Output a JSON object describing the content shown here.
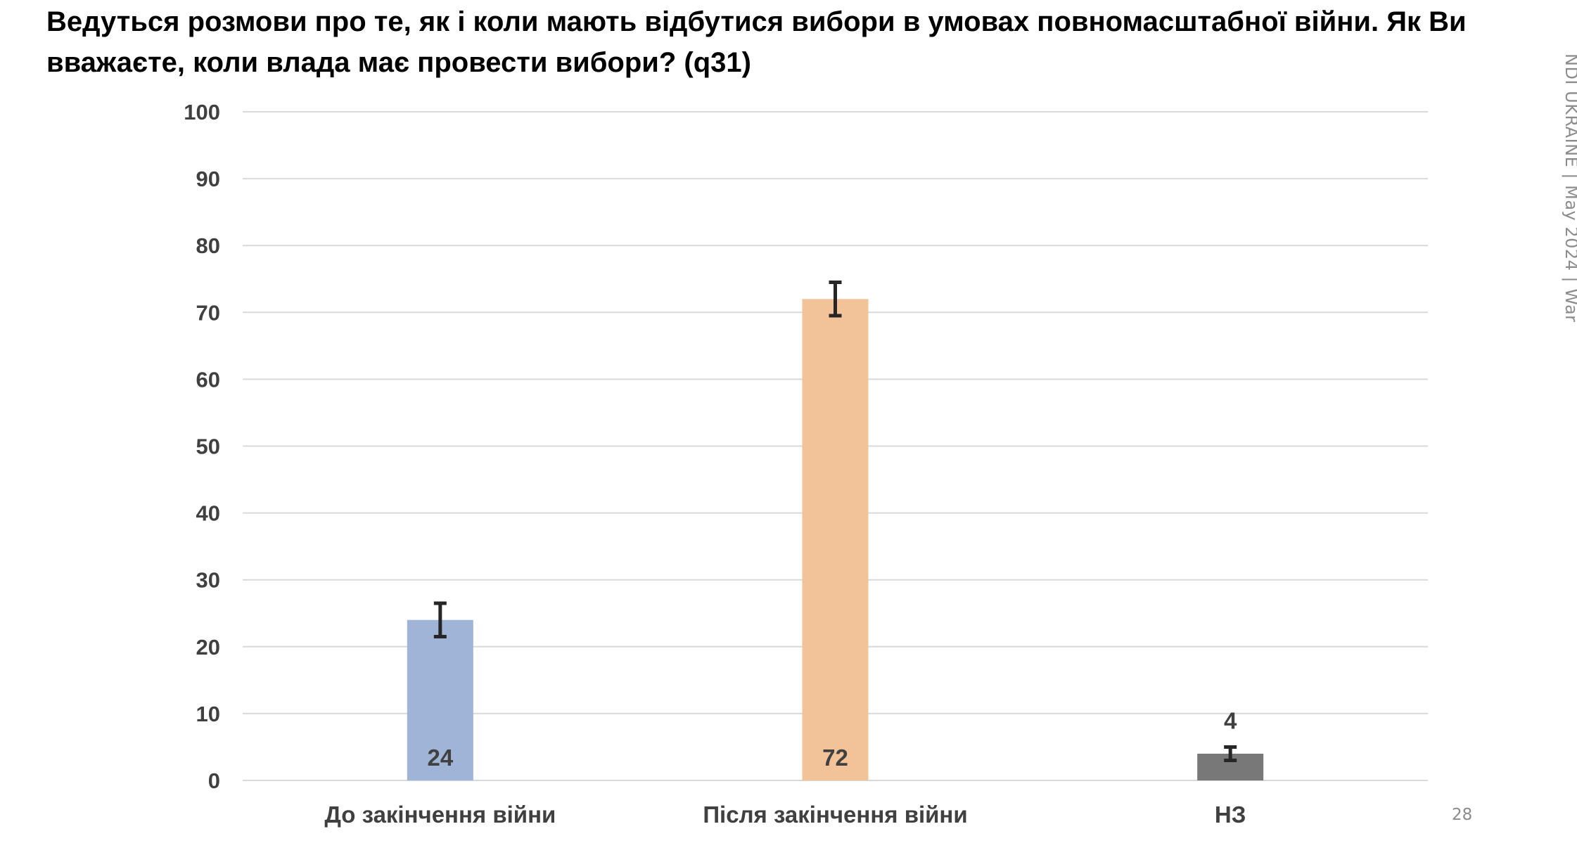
{
  "title": "Ведуться розмови про те, як і коли мають відбутися вибори в умовах повномасштабної війни. Як Ви вважаєте, коли влада має провести вибори? (q31)",
  "side_label": "NDI UKRAINE | May 2024 | War",
  "page_number": "28",
  "colors": {
    "bar_1": "#9fb4d6",
    "bar_2": "#f2c398",
    "bar_3": "#787878",
    "grid": "#d9d9d9",
    "error_bar": "#262626"
  },
  "chart_data": {
    "type": "bar",
    "categories": [
      "До закінчення війни",
      "Після закінчення війни",
      "НЗ"
    ],
    "values": [
      24,
      72,
      4
    ],
    "data_labels": [
      "24",
      "72",
      "4"
    ],
    "error_bars": [
      {
        "low": 21.5,
        "high": 26.5
      },
      {
        "low": 69.5,
        "high": 74.5
      },
      {
        "low": 3,
        "high": 5
      }
    ],
    "ylim": [
      0,
      100
    ],
    "yticks": [
      "0",
      "10",
      "20",
      "30",
      "40",
      "50",
      "60",
      "70",
      "80",
      "90",
      "100"
    ],
    "grid": true,
    "legend": "none"
  }
}
